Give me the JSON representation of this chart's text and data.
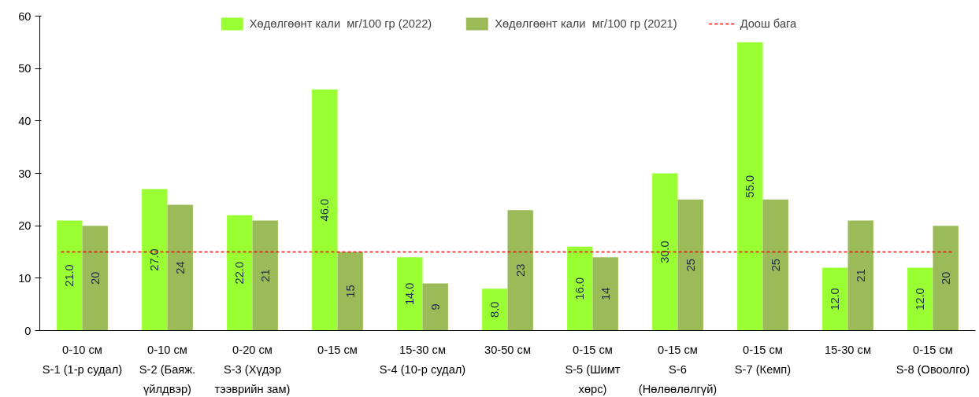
{
  "chart_data": {
    "type": "bar",
    "categories": [
      "0-10 см\nS-1 (1-р судал)",
      "0-10 см\nS-2 (Баяж.\nүйлдвэр)",
      "0-20 см\nS-3 (Хүдэр\nтээврийн зам)",
      "0-15 см",
      "15-30 см\nS-4 (10-р судал)",
      "30-50 см",
      "0-15 см\nS-5 (Шимт\nхөрс)",
      "0-15 см\nS-6\n(Нөлөөлөлгүй)",
      "0-15 см\nS-7 (Кемп)",
      "15-30 см",
      "0-15 см\nS-8 (Овоолго)"
    ],
    "series": [
      {
        "name": "Хөдөлгөөнт кали  мг/100 гр (2022)",
        "color": "#99ff33",
        "values": [
          21,
          27,
          22,
          46,
          14,
          8,
          16,
          30,
          55,
          12,
          12
        ],
        "value_labels": [
          "21.0",
          "27.0",
          "22.0",
          "46.0",
          "14.0",
          "8.0",
          "16.0",
          "30.0",
          "55.0",
          "12.0",
          "12.0"
        ]
      },
      {
        "name": "Хөдөлгөөнт кали  мг/100 гр (2021)",
        "color": "#9bbb59",
        "values": [
          20,
          24,
          21,
          15,
          9,
          23,
          14,
          25,
          25,
          21,
          20
        ],
        "value_labels": [
          "20",
          "24",
          "21",
          "15",
          "9",
          "23",
          "14",
          "25",
          "25",
          "21",
          "20"
        ]
      }
    ],
    "ref_lines": [
      {
        "axis": "y",
        "value": 15,
        "label": "Доош бага",
        "color": "#ff0000",
        "line_style": "dashed"
      }
    ],
    "ylim": [
      0,
      60
    ],
    "yticks": [
      0,
      10,
      20,
      30,
      40,
      50,
      60
    ],
    "grid": false,
    "legend": "top"
  }
}
